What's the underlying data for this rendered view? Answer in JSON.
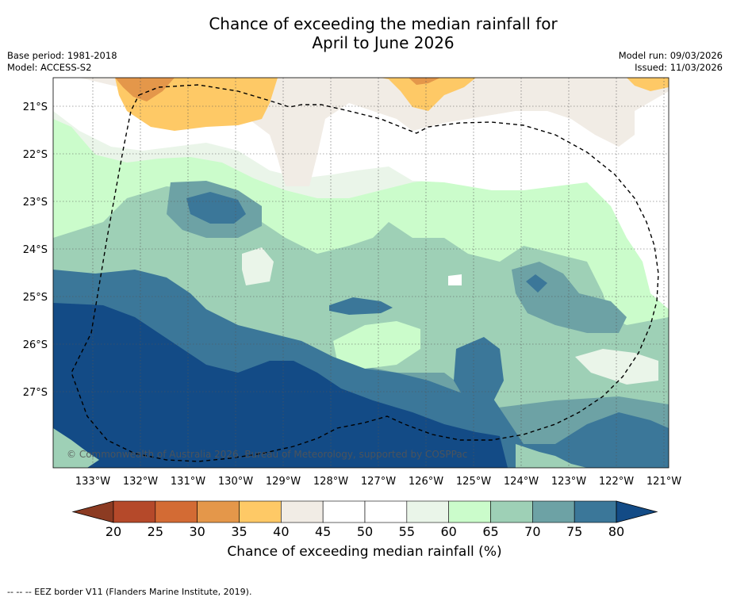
{
  "title": {
    "line1": "Chance of exceeding the median rainfall for",
    "line2": "April to June 2026"
  },
  "meta": {
    "base_period": "Base period: 1981-2018",
    "model": "Model: ACCESS-S2",
    "model_run": "Model run: 09/03/2026",
    "issued": "Issued: 11/03/2026"
  },
  "map": {
    "lat_ticks": [
      "21°S",
      "22°S",
      "23°S",
      "24°S",
      "25°S",
      "26°S",
      "27°S"
    ],
    "lon_ticks": [
      "133°W",
      "132°W",
      "131°W",
      "130°W",
      "129°W",
      "128°W",
      "127°W",
      "126°W",
      "125°W",
      "124°W",
      "123°W",
      "122°W",
      "121°W"
    ],
    "watermark": "© Commonwealth of Australia 2026, Bureau of Meteorology, supported by COSPPac"
  },
  "colorbar": {
    "ticks": [
      "20",
      "25",
      "30",
      "35",
      "40",
      "45",
      "50",
      "55",
      "60",
      "65",
      "70",
      "75",
      "80"
    ],
    "colors": [
      "#b5492a",
      "#d36b34",
      "#e4974a",
      "#fec966",
      "#f1ece5",
      "#ffffff",
      "#ffffff",
      "#eaf5e9",
      "#cbfccb",
      "#9ed0b6",
      "#6da2a5",
      "#3b7799"
    ],
    "under_color": "#8c3b22",
    "over_color": "#134b86",
    "label": "Chance of exceeding median rainfall (%)"
  },
  "footnote": "-- -- -- EEZ border V11 (Flanders Marine Institute, 2019)."
}
